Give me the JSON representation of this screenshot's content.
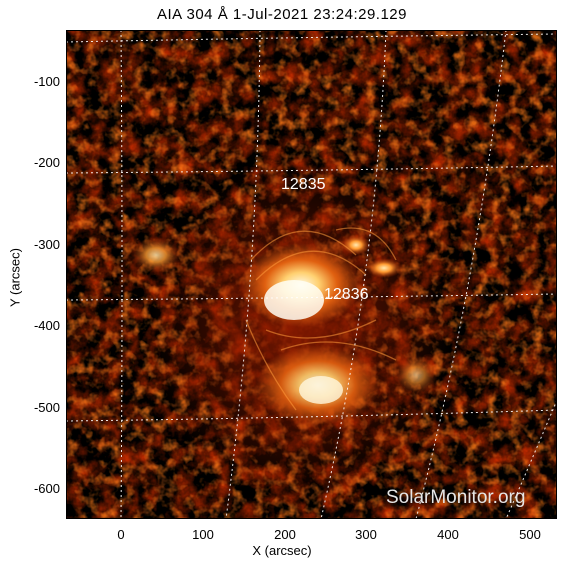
{
  "title": "AIA 304 Å   1-Jul-2021 23:24:29.129",
  "axes": {
    "xlabel": "X (arcsec)",
    "ylabel": "Y (arcsec)",
    "x_ticks": [
      "0",
      "100",
      "200",
      "300",
      "400",
      "500"
    ],
    "y_ticks": [
      "-100",
      "-200",
      "-300",
      "-400",
      "-500",
      "-600"
    ]
  },
  "regions": [
    {
      "id": "12835"
    },
    {
      "id": "12836"
    }
  ],
  "watermark": "SolarMonitor.org",
  "colors": {
    "background": "#000000",
    "plasma_dark": "#3a0500",
    "plasma_mid": "#b82a00",
    "plasma_bright": "#ff9a20",
    "plasma_white": "#fff6e0",
    "grid": "#ffffff"
  }
}
